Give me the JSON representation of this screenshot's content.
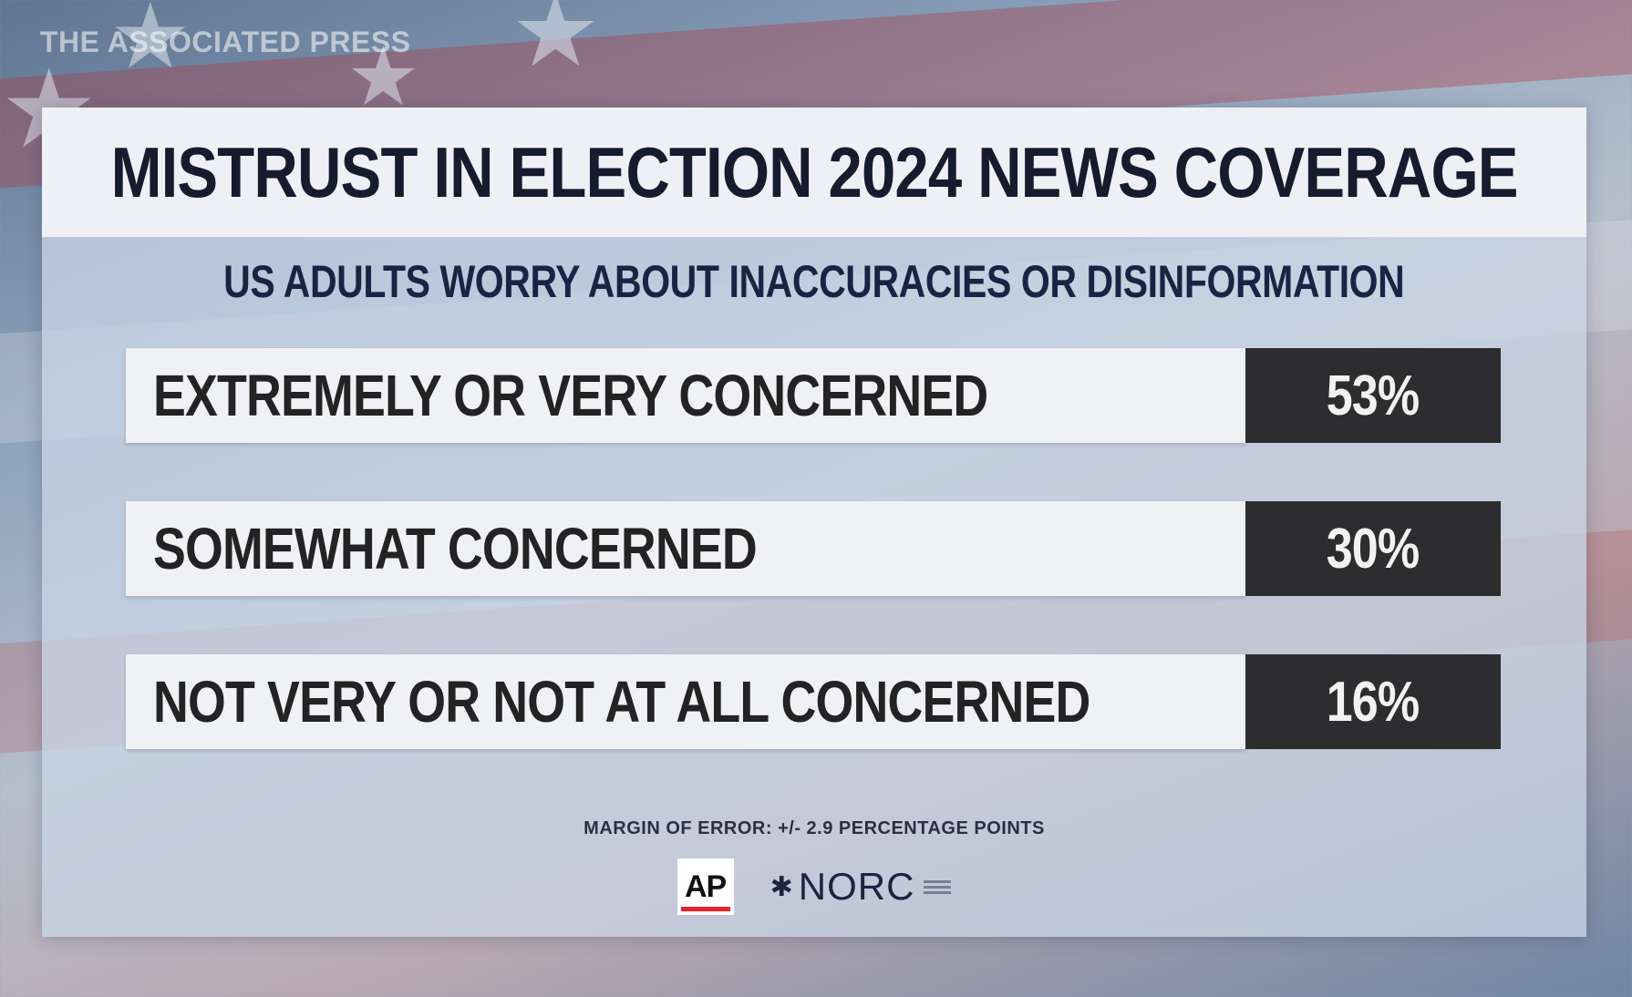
{
  "watermark": "THE ASSOCIATED PRESS",
  "chart_data": {
    "type": "table",
    "title": "MISTRUST IN ELECTION 2024 NEWS COVERAGE",
    "subtitle": "US ADULTS WORRY ABOUT INACCURACIES OR DISINFORMATION",
    "categories": [
      "EXTREMELY OR VERY CONCERNED",
      "SOMEWHAT CONCERNED",
      "NOT VERY OR NOT AT ALL CONCERNED"
    ],
    "values": [
      53,
      30,
      16
    ],
    "value_labels": [
      "53%",
      "30%",
      "16%"
    ],
    "footnote": "MARGIN OF ERROR: +/- 2.9 PERCENTAGE POINTS"
  },
  "logos": {
    "ap": "AP",
    "norc": "NORC"
  },
  "colors": {
    "title_band": "#eef0f5",
    "label_box": "#f0f1f4",
    "value_box": "#2d2d2f",
    "ap_red": "#e4242b"
  }
}
